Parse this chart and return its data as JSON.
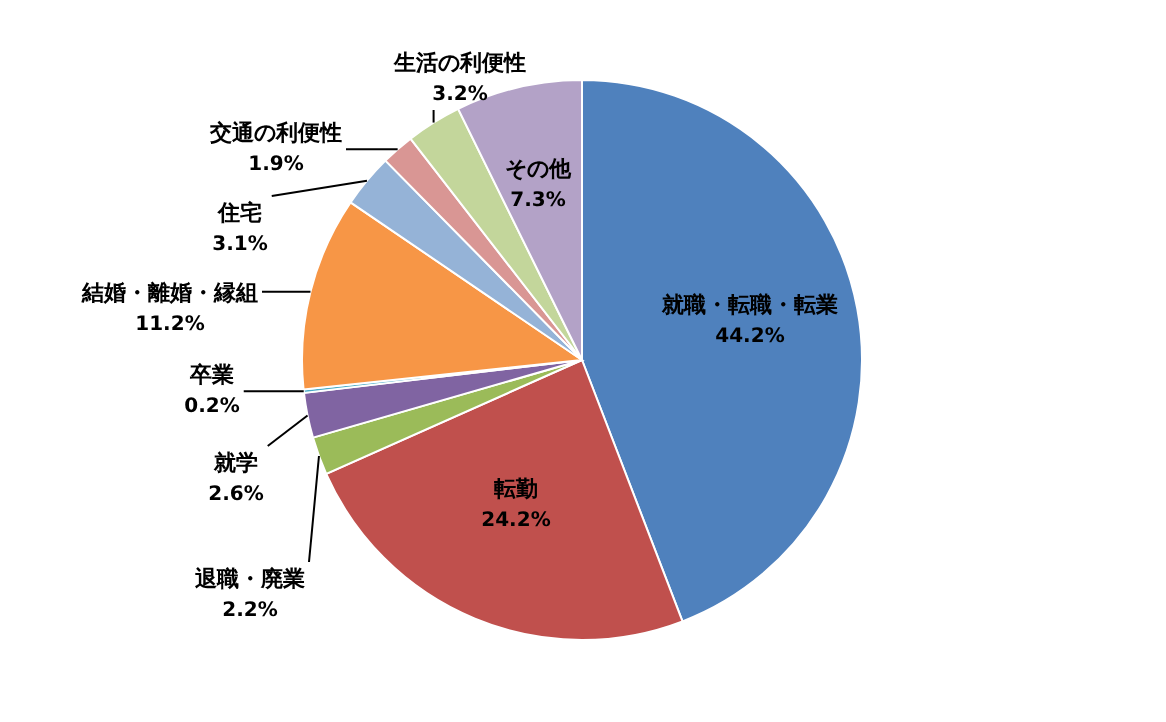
{
  "chart_data": {
    "type": "pie",
    "categories": [
      "就職・転職・転業",
      "転勤",
      "退職・廃業",
      "就学",
      "卒業",
      "結婚・離婚・縁組",
      "住宅",
      "交通の利便性",
      "生活の利便性",
      "その他"
    ],
    "values": [
      44.2,
      24.2,
      2.2,
      2.6,
      0.2,
      11.2,
      3.1,
      1.9,
      3.2,
      7.3
    ],
    "colors": [
      "#4f81bd",
      "#c0504d",
      "#9bbb59",
      "#8064a2",
      "#4bacc6",
      "#f79646",
      "#95b3d7",
      "#d99694",
      "#c3d69b",
      "#b3a2c7"
    ],
    "value_labels": [
      "44.2%",
      "24.2%",
      "2.2%",
      "2.6%",
      "0.2%",
      "11.2%",
      "3.1%",
      "1.9%",
      "3.2%",
      "7.3%"
    ]
  }
}
